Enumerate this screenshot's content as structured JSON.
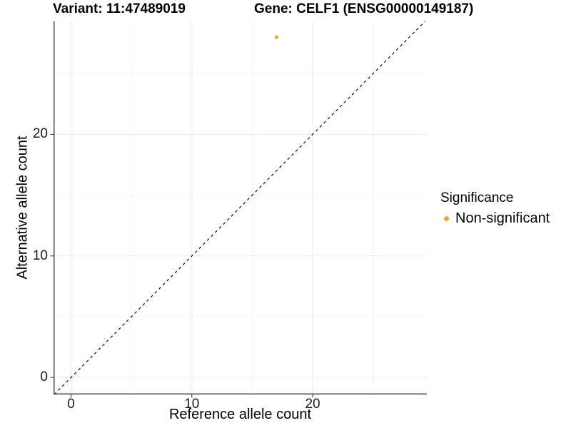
{
  "chart_data": {
    "type": "scatter",
    "title_left": "Variant: 11:47489019",
    "title_right": "Gene: CELF1 (ENSG00000149187)",
    "xlabel": "Reference allele count",
    "ylabel": "Alternative allele count",
    "xlim": [
      -1.45,
      29.45
    ],
    "ylim": [
      -1.4,
      29.3
    ],
    "x_major_ticks": [
      0,
      10,
      20
    ],
    "x_minor_ticks": [
      5,
      15,
      25
    ],
    "y_major_ticks": [
      0,
      10,
      20
    ],
    "y_minor_ticks": [
      5,
      15,
      25
    ],
    "grid": "major+minor",
    "identity_line": {
      "style": "dashed",
      "slope": 1,
      "intercept": 0,
      "color": "#111111"
    },
    "series": [
      {
        "name": "Non-significant",
        "color": "#F9A22B",
        "points": [
          {
            "x": 17,
            "y": 28
          }
        ]
      }
    ],
    "legend": {
      "title": "Significance",
      "position": "right",
      "items": [
        {
          "label": "Non-significant",
          "color": "#F9A22B",
          "marker": "circle"
        }
      ]
    }
  },
  "colors": {
    "background": "#FFFFFF",
    "grid_major": "#E9E9E9",
    "grid_minor": "#F4F4F4",
    "axis_line": "#4D4D4D",
    "tick_mark": "#4D4D4D",
    "text": "#000000"
  }
}
